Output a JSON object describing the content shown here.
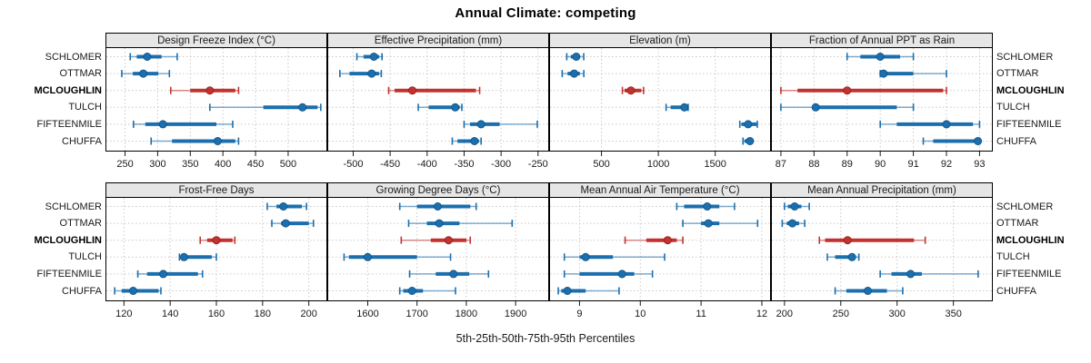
{
  "title": "Annual Climate: competing",
  "footer": "5th-25th-50th-75th-95th Percentiles",
  "sites": [
    "SCHLOMER",
    "OTTMAR",
    "MCLOUGHLIN",
    "TULCH",
    "FIFTEENMILE",
    "CHUFFA"
  ],
  "highlight_site": "MCLOUGHLIN",
  "colors": {
    "series": "#1b6fae",
    "series_dot_edge": "#0d4f80",
    "highlight": "#c2322e",
    "highlight_dot_edge": "#8f1f1c",
    "strip_bg": "#e6e6e6",
    "panel_border": "#000000",
    "grid": "#c9c9c9",
    "tick": "#1a1a1a"
  },
  "chart_data": {
    "type": "dotplot",
    "percentiles": [
      5,
      25,
      50,
      75,
      95
    ],
    "legend_position": "none",
    "grid": "dotted",
    "panels": [
      {
        "title": "Design Freeze Index (°C)",
        "row": 0,
        "col": 0,
        "xlim": [
          220,
          560
        ],
        "ticks": [
          250,
          300,
          350,
          400,
          450,
          500
        ],
        "values": {
          "SCHLOMER": [
            258,
            268,
            284,
            306,
            330
          ],
          "OTTMAR": [
            245,
            262,
            278,
            301,
            318
          ],
          "MCLOUGHLIN": [
            320,
            350,
            380,
            419,
            424
          ],
          "TULCH": [
            380,
            462,
            522,
            545,
            550
          ],
          "FIFTEENMILE": [
            263,
            281,
            308,
            390,
            415
          ],
          "CHUFFA": [
            290,
            322,
            392,
            419,
            424
          ]
        }
      },
      {
        "title": "Effective Precipitation (mm)",
        "row": 0,
        "col": 1,
        "xlim": [
          -535,
          -235
        ],
        "ticks": [
          -500,
          -450,
          -400,
          -350,
          -300,
          -250
        ],
        "values": {
          "SCHLOMER": [
            -495,
            -486,
            -472,
            -465,
            -461
          ],
          "OTTMAR": [
            -518,
            -505,
            -475,
            -465,
            -462
          ],
          "MCLOUGHLIN": [
            -452,
            -444,
            -420,
            -334,
            -329
          ],
          "TULCH": [
            -412,
            -398,
            -362,
            -356,
            -353
          ],
          "FIFTEENMILE": [
            -350,
            -342,
            -327,
            -302,
            -251
          ],
          "CHUFFA": [
            -366,
            -359,
            -336,
            -330,
            -327
          ]
        }
      },
      {
        "title": "Elevation (m)",
        "row": 0,
        "col": 2,
        "xlim": [
          40,
          1990
        ],
        "ticks": [
          500,
          1000,
          1500
        ],
        "values": {
          "SCHLOMER": [
            195,
            230,
            278,
            312,
            344
          ],
          "OTTMAR": [
            155,
            202,
            260,
            310,
            345
          ],
          "MCLOUGHLIN": [
            684,
            703,
            759,
            850,
            870
          ],
          "TULCH": [
            1068,
            1108,
            1229,
            1256,
            1262
          ],
          "FIFTEENMILE": [
            1716,
            1730,
            1789,
            1864,
            1870
          ],
          "CHUFFA": [
            1744,
            1757,
            1805,
            1811,
            1816
          ]
        }
      },
      {
        "title": "Fraction of Annual PPT as Rain",
        "row": 0,
        "col": 3,
        "xlim": [
          86.7,
          93.4
        ],
        "ticks": [
          87,
          88,
          89,
          90,
          91,
          92,
          93
        ],
        "values": {
          "SCHLOMER": [
            89.0,
            89.4,
            90.0,
            90.6,
            91.0
          ],
          "OTTMAR": [
            90.0,
            90.05,
            90.1,
            91.0,
            92.0
          ],
          "MCLOUGHLIN": [
            87.0,
            87.5,
            89.0,
            91.9,
            92.0
          ],
          "TULCH": [
            87.0,
            88.0,
            88.05,
            90.5,
            91.0
          ],
          "FIFTEENMILE": [
            90.0,
            90.5,
            92.0,
            92.8,
            93.0
          ],
          "CHUFFA": [
            91.3,
            91.6,
            92.95,
            93.0,
            93.0
          ]
        }
      },
      {
        "title": "Frost-Free Days",
        "row": 1,
        "col": 0,
        "xlim": [
          112,
          208
        ],
        "ticks": [
          120,
          140,
          160,
          180,
          200
        ],
        "values": {
          "SCHLOMER": [
            182,
            186,
            189,
            197,
            199
          ],
          "OTTMAR": [
            184,
            188,
            190,
            200,
            202
          ],
          "MCLOUGHLIN": [
            153,
            156,
            160,
            167,
            168
          ],
          "TULCH": [
            144,
            145,
            146,
            158,
            160
          ],
          "FIFTEENMILE": [
            126,
            130,
            137,
            152,
            154
          ],
          "CHUFFA": [
            116,
            119,
            124,
            135,
            136
          ]
        }
      },
      {
        "title": "Growing Degree Days (°C)",
        "row": 1,
        "col": 1,
        "xlim": [
          1518,
          1968
        ],
        "ticks": [
          1600,
          1700,
          1800,
          1900
        ],
        "values": {
          "SCHLOMER": [
            1665,
            1700,
            1742,
            1808,
            1820
          ],
          "OTTMAR": [
            1683,
            1720,
            1745,
            1786,
            1893
          ],
          "MCLOUGHLIN": [
            1668,
            1728,
            1764,
            1800,
            1808
          ],
          "TULCH": [
            1552,
            1562,
            1600,
            1700,
            1768
          ],
          "FIFTEENMILE": [
            1685,
            1738,
            1774,
            1806,
            1845
          ],
          "CHUFFA": [
            1665,
            1672,
            1690,
            1712,
            1778
          ]
        }
      },
      {
        "title": "Mean Annual Air Temperature (°C)",
        "row": 1,
        "col": 2,
        "xlim": [
          8.5,
          12.15
        ],
        "ticks": [
          9,
          10,
          11,
          12
        ],
        "values": {
          "SCHLOMER": [
            10.6,
            10.72,
            11.1,
            11.3,
            11.55
          ],
          "OTTMAR": [
            10.7,
            11.0,
            11.12,
            11.3,
            11.93
          ],
          "MCLOUGHLIN": [
            9.75,
            10.1,
            10.45,
            10.6,
            10.7
          ],
          "TULCH": [
            8.75,
            9.0,
            9.1,
            9.55,
            10.4
          ],
          "FIFTEENMILE": [
            8.75,
            9.0,
            9.7,
            9.9,
            10.2
          ],
          "CHUFFA": [
            8.65,
            8.7,
            8.8,
            9.1,
            9.65
          ]
        }
      },
      {
        "title": "Mean Annual Precipitation (mm)",
        "row": 1,
        "col": 3,
        "xlim": [
          188,
          385
        ],
        "ticks": [
          200,
          250,
          300,
          350
        ],
        "values": {
          "SCHLOMER": [
            200,
            203,
            209,
            215,
            222
          ],
          "OTTMAR": [
            198,
            202,
            207,
            213,
            218
          ],
          "MCLOUGHLIN": [
            231,
            236,
            256,
            315,
            325
          ],
          "TULCH": [
            238,
            245,
            260,
            263,
            266
          ],
          "FIFTEENMILE": [
            285,
            295,
            312,
            322,
            372
          ],
          "CHUFFA": [
            245,
            255,
            274,
            291,
            305
          ]
        }
      }
    ]
  }
}
